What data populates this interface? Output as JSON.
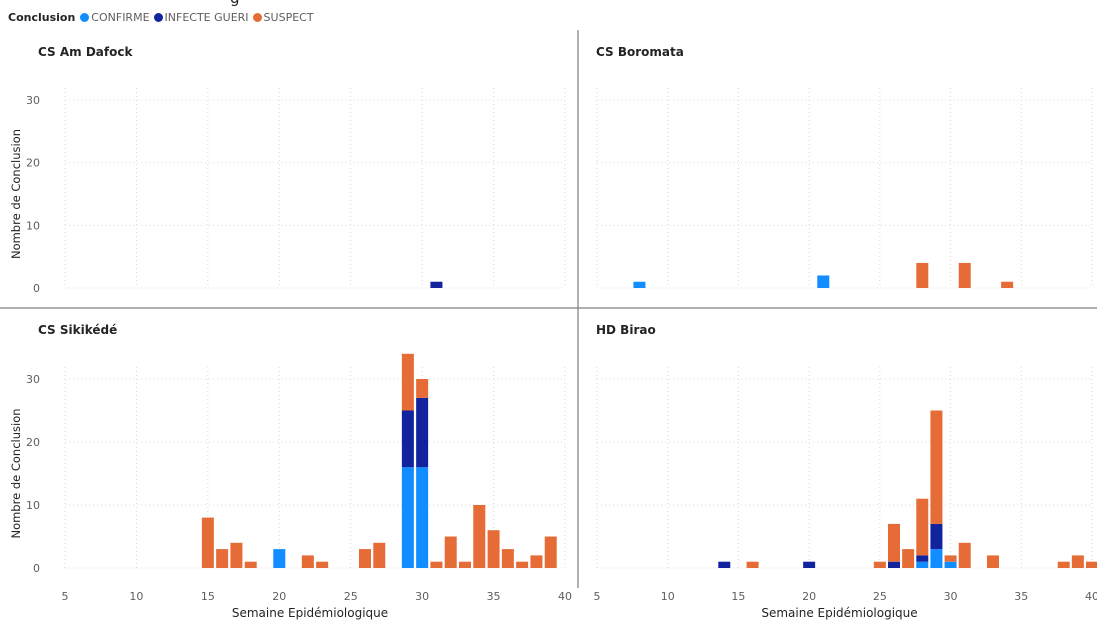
{
  "title_fragment": "g",
  "legend": {
    "title": "Conclusion",
    "items": [
      {
        "label": "CONFIRME",
        "color": "#118DFF"
      },
      {
        "label": "INFECTE GUERI",
        "color": "#12239E"
      },
      {
        "label": "SUSPECT",
        "color": "#E66C37"
      }
    ]
  },
  "chart_data": {
    "type": "bar",
    "stacked": true,
    "layout": "small-multiples-2x2",
    "xlabel": "Semaine Epidémiologique",
    "ylabel": "Nombre de Conclusion",
    "xlim": [
      5,
      40
    ],
    "ylim": [
      0,
      35
    ],
    "x_ticks": [
      5,
      10,
      15,
      20,
      25,
      30,
      35,
      40
    ],
    "y_ticks": [
      0,
      10,
      20,
      30
    ],
    "grid": true,
    "legend_position": "top-left",
    "series_order": [
      "CONFIRME",
      "INFECTE GUERI",
      "SUSPECT"
    ],
    "panels": [
      {
        "title": "CS Am Dafock",
        "bars": [
          {
            "x": 31,
            "CONFIRME": 0,
            "INFECTE GUERI": 1,
            "SUSPECT": 0
          }
        ]
      },
      {
        "title": "CS Boromata",
        "bars": [
          {
            "x": 8,
            "CONFIRME": 1,
            "INFECTE GUERI": 0,
            "SUSPECT": 0
          },
          {
            "x": 21,
            "CONFIRME": 2,
            "INFECTE GUERI": 0,
            "SUSPECT": 0
          },
          {
            "x": 28,
            "CONFIRME": 0,
            "INFECTE GUERI": 0,
            "SUSPECT": 4
          },
          {
            "x": 31,
            "CONFIRME": 0,
            "INFECTE GUERI": 0,
            "SUSPECT": 4
          },
          {
            "x": 34,
            "CONFIRME": 0,
            "INFECTE GUERI": 0,
            "SUSPECT": 1
          }
        ]
      },
      {
        "title": "CS Sikikédé",
        "bars": [
          {
            "x": 15,
            "CONFIRME": 0,
            "INFECTE GUERI": 0,
            "SUSPECT": 8
          },
          {
            "x": 16,
            "CONFIRME": 0,
            "INFECTE GUERI": 0,
            "SUSPECT": 3
          },
          {
            "x": 17,
            "CONFIRME": 0,
            "INFECTE GUERI": 0,
            "SUSPECT": 4
          },
          {
            "x": 18,
            "CONFIRME": 0,
            "INFECTE GUERI": 0,
            "SUSPECT": 1
          },
          {
            "x": 20,
            "CONFIRME": 3,
            "INFECTE GUERI": 0,
            "SUSPECT": 0
          },
          {
            "x": 22,
            "CONFIRME": 0,
            "INFECTE GUERI": 0,
            "SUSPECT": 2
          },
          {
            "x": 23,
            "CONFIRME": 0,
            "INFECTE GUERI": 0,
            "SUSPECT": 1
          },
          {
            "x": 26,
            "CONFIRME": 0,
            "INFECTE GUERI": 0,
            "SUSPECT": 3
          },
          {
            "x": 27,
            "CONFIRME": 0,
            "INFECTE GUERI": 0,
            "SUSPECT": 4
          },
          {
            "x": 29,
            "CONFIRME": 16,
            "INFECTE GUERI": 9,
            "SUSPECT": 9
          },
          {
            "x": 30,
            "CONFIRME": 16,
            "INFECTE GUERI": 11,
            "SUSPECT": 3
          },
          {
            "x": 31,
            "CONFIRME": 0,
            "INFECTE GUERI": 0,
            "SUSPECT": 1
          },
          {
            "x": 32,
            "CONFIRME": 0,
            "INFECTE GUERI": 0,
            "SUSPECT": 5
          },
          {
            "x": 33,
            "CONFIRME": 0,
            "INFECTE GUERI": 0,
            "SUSPECT": 1
          },
          {
            "x": 34,
            "CONFIRME": 0,
            "INFECTE GUERI": 0,
            "SUSPECT": 10
          },
          {
            "x": 35,
            "CONFIRME": 0,
            "INFECTE GUERI": 0,
            "SUSPECT": 6
          },
          {
            "x": 36,
            "CONFIRME": 0,
            "INFECTE GUERI": 0,
            "SUSPECT": 3
          },
          {
            "x": 37,
            "CONFIRME": 0,
            "INFECTE GUERI": 0,
            "SUSPECT": 1
          },
          {
            "x": 38,
            "CONFIRME": 0,
            "INFECTE GUERI": 0,
            "SUSPECT": 2
          },
          {
            "x": 39,
            "CONFIRME": 0,
            "INFECTE GUERI": 0,
            "SUSPECT": 5
          }
        ]
      },
      {
        "title": "HD Birao",
        "bars": [
          {
            "x": 14,
            "CONFIRME": 0,
            "INFECTE GUERI": 1,
            "SUSPECT": 0
          },
          {
            "x": 16,
            "CONFIRME": 0,
            "INFECTE GUERI": 0,
            "SUSPECT": 1
          },
          {
            "x": 20,
            "CONFIRME": 0,
            "INFECTE GUERI": 1,
            "SUSPECT": 0
          },
          {
            "x": 25,
            "CONFIRME": 0,
            "INFECTE GUERI": 0,
            "SUSPECT": 1
          },
          {
            "x": 26,
            "CONFIRME": 0,
            "INFECTE GUERI": 1,
            "SUSPECT": 6
          },
          {
            "x": 27,
            "CONFIRME": 0,
            "INFECTE GUERI": 0,
            "SUSPECT": 3
          },
          {
            "x": 28,
            "CONFIRME": 1,
            "INFECTE GUERI": 1,
            "SUSPECT": 9
          },
          {
            "x": 29,
            "CONFIRME": 3,
            "INFECTE GUERI": 4,
            "SUSPECT": 18
          },
          {
            "x": 30,
            "CONFIRME": 1,
            "INFECTE GUERI": 0,
            "SUSPECT": 1
          },
          {
            "x": 31,
            "CONFIRME": 0,
            "INFECTE GUERI": 0,
            "SUSPECT": 4
          },
          {
            "x": 33,
            "CONFIRME": 0,
            "INFECTE GUERI": 0,
            "SUSPECT": 2
          },
          {
            "x": 38,
            "CONFIRME": 0,
            "INFECTE GUERI": 0,
            "SUSPECT": 1
          },
          {
            "x": 39,
            "CONFIRME": 0,
            "INFECTE GUERI": 0,
            "SUSPECT": 2
          },
          {
            "x": 40,
            "CONFIRME": 0,
            "INFECTE GUERI": 0,
            "SUSPECT": 1
          }
        ]
      }
    ]
  }
}
